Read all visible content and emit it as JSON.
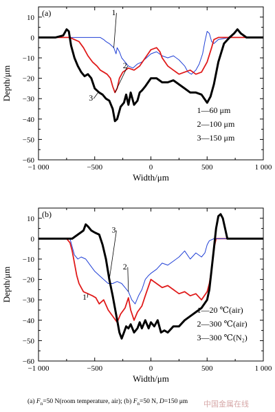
{
  "chart_data": [
    {
      "type": "line",
      "panel_label": "(a)",
      "xlabel": "Width/μm",
      "ylabel": "Depth/μm",
      "xlim": [
        -1000,
        1000
      ],
      "ylim": [
        -60,
        15
      ],
      "xticks": [
        -1000,
        -500,
        0,
        500,
        1000
      ],
      "xtick_labels": [
        "−1 000",
        "−500",
        "0",
        "500",
        "1 000"
      ],
      "yticks": [
        10,
        0,
        -10,
        -20,
        -30,
        -40,
        -50,
        -60
      ],
      "grid": false,
      "legend_position": "lower-right",
      "legend": [
        "1—60 μm",
        "2—100 μm",
        "3—150 μm"
      ],
      "series": [
        {
          "callout": "1",
          "color": "#1f3fd6",
          "stroke": "thin",
          "points": [
            [
              -1000,
              0
            ],
            [
              -700,
              0
            ],
            [
              -600,
              0
            ],
            [
              -500,
              0
            ],
            [
              -450,
              0
            ],
            [
              -420,
              -1
            ],
            [
              -400,
              -2
            ],
            [
              -370,
              -3
            ],
            [
              -330,
              -5
            ],
            [
              -310,
              -8
            ],
            [
              -300,
              -5
            ],
            [
              -280,
              -7
            ],
            [
              -260,
              -10
            ],
            [
              -230,
              -12
            ],
            [
              -200,
              -14
            ],
            [
              -160,
              -15
            ],
            [
              -120,
              -13
            ],
            [
              -80,
              -12
            ],
            [
              -40,
              -10
            ],
            [
              0,
              -8
            ],
            [
              50,
              -7
            ],
            [
              100,
              -9
            ],
            [
              150,
              -10
            ],
            [
              200,
              -9
            ],
            [
              250,
              -11
            ],
            [
              300,
              -14
            ],
            [
              330,
              -17
            ],
            [
              360,
              -18
            ],
            [
              400,
              -16
            ],
            [
              430,
              -13
            ],
            [
              460,
              -8
            ],
            [
              480,
              -2
            ],
            [
              500,
              3
            ],
            [
              520,
              2
            ],
            [
              540,
              -2
            ],
            [
              560,
              -3
            ],
            [
              600,
              -1
            ],
            [
              700,
              0
            ],
            [
              800,
              0
            ],
            [
              1000,
              0
            ]
          ]
        },
        {
          "callout": "2",
          "color": "#e01a1a",
          "stroke": "medium",
          "points": [
            [
              -1000,
              0
            ],
            [
              -760,
              0
            ],
            [
              -720,
              0
            ],
            [
              -680,
              -1
            ],
            [
              -640,
              -2
            ],
            [
              -600,
              -5
            ],
            [
              -560,
              -9
            ],
            [
              -520,
              -12
            ],
            [
              -480,
              -14
            ],
            [
              -450,
              -16
            ],
            [
              -420,
              -17
            ],
            [
              -390,
              -18
            ],
            [
              -360,
              -20
            ],
            [
              -340,
              -24
            ],
            [
              -320,
              -27
            ],
            [
              -300,
              -25
            ],
            [
              -280,
              -20
            ],
            [
              -250,
              -17
            ],
            [
              -200,
              -15
            ],
            [
              -150,
              -16
            ],
            [
              -100,
              -14
            ],
            [
              -50,
              -10
            ],
            [
              0,
              -6
            ],
            [
              50,
              -5
            ],
            [
              80,
              -7
            ],
            [
              100,
              -10
            ],
            [
              150,
              -14
            ],
            [
              200,
              -16
            ],
            [
              250,
              -18
            ],
            [
              300,
              -17
            ],
            [
              350,
              -16
            ],
            [
              400,
              -18
            ],
            [
              450,
              -17
            ],
            [
              500,
              -12
            ],
            [
              540,
              -5
            ],
            [
              560,
              -1
            ],
            [
              600,
              0
            ],
            [
              700,
              0
            ],
            [
              800,
              0
            ],
            [
              1000,
              0
            ]
          ]
        },
        {
          "callout": "3",
          "color": "#000000",
          "stroke": "thick",
          "points": [
            [
              -1000,
              0
            ],
            [
              -850,
              0
            ],
            [
              -780,
              1
            ],
            [
              -750,
              4
            ],
            [
              -730,
              3
            ],
            [
              -710,
              -4
            ],
            [
              -680,
              -10
            ],
            [
              -650,
              -14
            ],
            [
              -620,
              -17
            ],
            [
              -590,
              -19
            ],
            [
              -560,
              -18
            ],
            [
              -530,
              -20
            ],
            [
              -500,
              -25
            ],
            [
              -460,
              -27
            ],
            [
              -430,
              -28
            ],
            [
              -400,
              -30
            ],
            [
              -370,
              -31
            ],
            [
              -340,
              -35
            ],
            [
              -320,
              -41
            ],
            [
              -300,
              -40
            ],
            [
              -270,
              -34
            ],
            [
              -240,
              -32
            ],
            [
              -220,
              -28
            ],
            [
              -200,
              -33
            ],
            [
              -180,
              -27
            ],
            [
              -150,
              -33
            ],
            [
              -120,
              -31
            ],
            [
              -100,
              -27
            ],
            [
              -80,
              -26
            ],
            [
              -50,
              -24
            ],
            [
              0,
              -20
            ],
            [
              50,
              -20
            ],
            [
              100,
              -22
            ],
            [
              150,
              -22
            ],
            [
              200,
              -21
            ],
            [
              250,
              -23
            ],
            [
              300,
              -25
            ],
            [
              350,
              -27
            ],
            [
              400,
              -27
            ],
            [
              450,
              -28
            ],
            [
              500,
              -32
            ],
            [
              530,
              -29
            ],
            [
              560,
              -23
            ],
            [
              600,
              -12
            ],
            [
              650,
              -3
            ],
            [
              700,
              0
            ],
            [
              740,
              2
            ],
            [
              770,
              4
            ],
            [
              800,
              2
            ],
            [
              850,
              0
            ],
            [
              1000,
              0
            ]
          ]
        }
      ]
    },
    {
      "type": "line",
      "panel_label": "(b)",
      "xlabel": "Width/μm",
      "ylabel": "Depth/μm",
      "xlim": [
        -1000,
        1000
      ],
      "ylim": [
        -60,
        15
      ],
      "xticks": [
        -1000,
        -500,
        0,
        500,
        1000
      ],
      "xtick_labels": [
        "−1 000",
        "−500",
        "0",
        "500",
        "1 000"
      ],
      "yticks": [
        10,
        0,
        -10,
        -20,
        -30,
        -40,
        -50,
        -60
      ],
      "grid": false,
      "legend_position": "lower-right",
      "legend": [
        "1—20 ℃(air)",
        "2—300 ℃(air)",
        "3—300 ℃(N₂)"
      ],
      "series": [
        {
          "callout": "1",
          "color": "#e01a1a",
          "stroke": "medium",
          "points": [
            [
              -1000,
              0
            ],
            [
              -750,
              0
            ],
            [
              -720,
              -2
            ],
            [
              -700,
              -6
            ],
            [
              -680,
              -12
            ],
            [
              -660,
              -18
            ],
            [
              -640,
              -22
            ],
            [
              -620,
              -24
            ],
            [
              -600,
              -26
            ],
            [
              -560,
              -27
            ],
            [
              -520,
              -28
            ],
            [
              -490,
              -29
            ],
            [
              -460,
              -32
            ],
            [
              -420,
              -30
            ],
            [
              -380,
              -35
            ],
            [
              -340,
              -38
            ],
            [
              -300,
              -41
            ],
            [
              -270,
              -37
            ],
            [
              -230,
              -34
            ],
            [
              -200,
              -29
            ],
            [
              -180,
              -35
            ],
            [
              -150,
              -40
            ],
            [
              -120,
              -36
            ],
            [
              -80,
              -33
            ],
            [
              -50,
              -28
            ],
            [
              0,
              -20
            ],
            [
              50,
              -22
            ],
            [
              100,
              -24
            ],
            [
              150,
              -23
            ],
            [
              200,
              -25
            ],
            [
              250,
              -27
            ],
            [
              300,
              -26
            ],
            [
              350,
              -28
            ],
            [
              400,
              -27
            ],
            [
              450,
              -30
            ],
            [
              500,
              -26
            ],
            [
              520,
              -22
            ],
            [
              540,
              -15
            ],
            [
              560,
              -5
            ],
            [
              580,
              0
            ],
            [
              600,
              0
            ],
            [
              1000,
              0
            ]
          ]
        },
        {
          "callout": "2",
          "color": "#1f3fd6",
          "stroke": "thin",
          "points": [
            [
              -1000,
              0
            ],
            [
              -720,
              0
            ],
            [
              -700,
              -4
            ],
            [
              -680,
              -8
            ],
            [
              -650,
              -10
            ],
            [
              -620,
              -9
            ],
            [
              -580,
              -10
            ],
            [
              -540,
              -13
            ],
            [
              -500,
              -16
            ],
            [
              -460,
              -18
            ],
            [
              -420,
              -20
            ],
            [
              -380,
              -22
            ],
            [
              -340,
              -22
            ],
            [
              -300,
              -21
            ],
            [
              -260,
              -22
            ],
            [
              -230,
              -24
            ],
            [
              -200,
              -26
            ],
            [
              -170,
              -30
            ],
            [
              -140,
              -32
            ],
            [
              -110,
              -28
            ],
            [
              -80,
              -25
            ],
            [
              -50,
              -20
            ],
            [
              -20,
              -18
            ],
            [
              0,
              -17
            ],
            [
              50,
              -15
            ],
            [
              100,
              -12
            ],
            [
              150,
              -13
            ],
            [
              200,
              -11
            ],
            [
              250,
              -9
            ],
            [
              300,
              -6
            ],
            [
              350,
              -10
            ],
            [
              400,
              -7
            ],
            [
              450,
              -9
            ],
            [
              480,
              -7
            ],
            [
              500,
              -3
            ],
            [
              520,
              -1
            ],
            [
              560,
              0
            ],
            [
              700,
              0
            ],
            [
              1000,
              0
            ]
          ]
        },
        {
          "callout": "3",
          "color": "#000000",
          "stroke": "thick",
          "points": [
            [
              -1000,
              0
            ],
            [
              -700,
              0
            ],
            [
              -650,
              2
            ],
            [
              -600,
              4
            ],
            [
              -580,
              7
            ],
            [
              -560,
              6
            ],
            [
              -530,
              4
            ],
            [
              -500,
              3
            ],
            [
              -460,
              2
            ],
            [
              -430,
              -3
            ],
            [
              -400,
              -10
            ],
            [
              -370,
              -20
            ],
            [
              -340,
              -28
            ],
            [
              -310,
              -37
            ],
            [
              -280,
              -46
            ],
            [
              -260,
              -49
            ],
            [
              -240,
              -46
            ],
            [
              -220,
              -43
            ],
            [
              -200,
              -44
            ],
            [
              -180,
              -42
            ],
            [
              -150,
              -46
            ],
            [
              -120,
              -44
            ],
            [
              -100,
              -41
            ],
            [
              -80,
              -44
            ],
            [
              -50,
              -40
            ],
            [
              -20,
              -44
            ],
            [
              0,
              -41
            ],
            [
              30,
              -43
            ],
            [
              60,
              -40
            ],
            [
              90,
              -46
            ],
            [
              120,
              -45
            ],
            [
              150,
              -46
            ],
            [
              200,
              -43
            ],
            [
              250,
              -43
            ],
            [
              300,
              -40
            ],
            [
              350,
              -38
            ],
            [
              400,
              -36
            ],
            [
              450,
              -34
            ],
            [
              500,
              -30
            ],
            [
              520,
              -25
            ],
            [
              540,
              -15
            ],
            [
              560,
              -5
            ],
            [
              580,
              5
            ],
            [
              600,
              11
            ],
            [
              620,
              12
            ],
            [
              640,
              10
            ],
            [
              660,
              5
            ],
            [
              680,
              0
            ],
            [
              700,
              0
            ],
            [
              800,
              0
            ],
            [
              1000,
              0
            ]
          ]
        }
      ]
    }
  ],
  "caption": "(a)  F_n=50 N(room temperature, air); (b) F_n=50 N, D=150 μm",
  "watermark": "中国金属在线"
}
